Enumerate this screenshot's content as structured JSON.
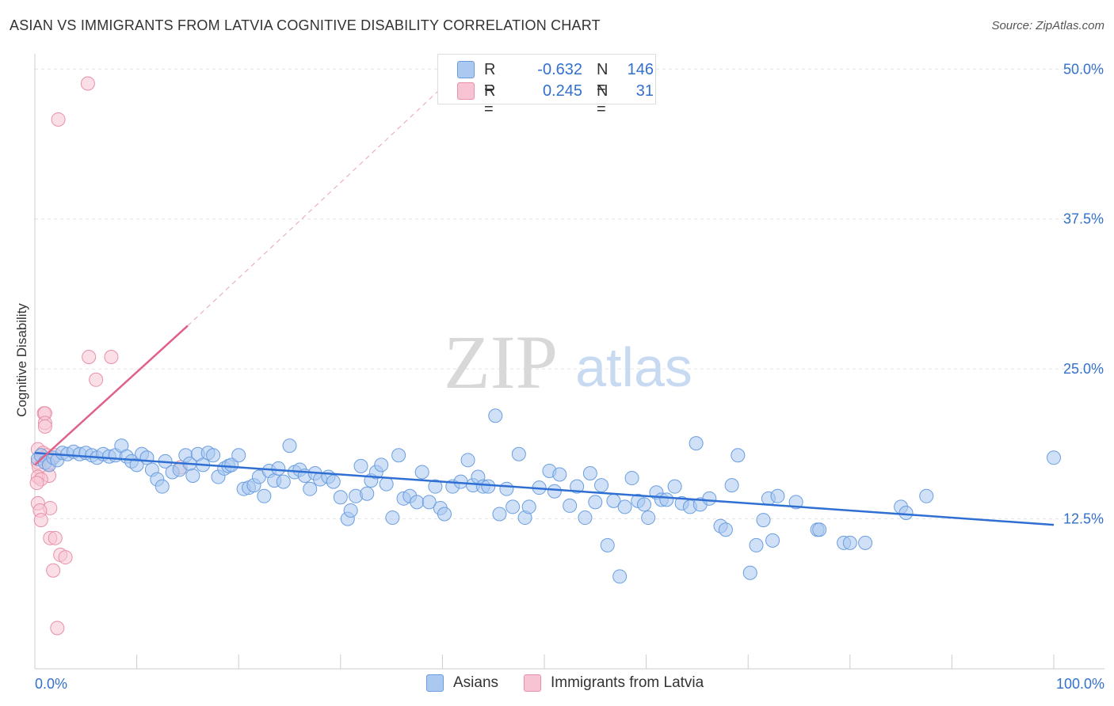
{
  "title": "ASIAN VS IMMIGRANTS FROM LATVIA COGNITIVE DISABILITY CORRELATION CHART",
  "source": "Source: ZipAtlas.com",
  "watermark": {
    "zip": "ZIP",
    "atlas": "atlas"
  },
  "legend": {
    "r_label": "R =",
    "n_label": "N =",
    "rows": [
      {
        "r": "-0.632",
        "n": "146",
        "color": "#aac8f0",
        "border": "#6a9ee0"
      },
      {
        "r": "0.245",
        "n": "31",
        "color": "#f8c4d4",
        "border": "#e890a8"
      }
    ]
  },
  "bottom_legend": [
    {
      "label": "Asians",
      "color": "#aac8f0",
      "border": "#6a9ee0"
    },
    {
      "label": "Immigrants from Latvia",
      "color": "#f8c4d4",
      "border": "#e890a8"
    }
  ],
  "chart_data": {
    "type": "scatter",
    "title": "ASIAN VS IMMIGRANTS FROM LATVIA COGNITIVE DISABILITY CORRELATION CHART",
    "xlabel": "",
    "ylabel": "Cognitive Disability",
    "xlim": [
      0,
      100
    ],
    "ylim": [
      0,
      52
    ],
    "x_tick_labels": [
      "0.0%",
      "100.0%"
    ],
    "y_ticks": [
      12.5,
      25.0,
      37.5,
      50.0
    ],
    "y_tick_labels": [
      "12.5%",
      "25.0%",
      "37.5%",
      "50.0%"
    ],
    "grid": "horizontal dashed",
    "series": [
      {
        "name": "Asians",
        "color": "#6a9ee0",
        "fill": "#aac8f0",
        "trend": {
          "x": [
            0,
            100
          ],
          "y": [
            18.0,
            12.0
          ]
        },
        "points": [
          [
            0.3,
            17.5
          ],
          [
            0.6,
            17.8
          ],
          [
            1.0,
            17.2
          ],
          [
            1.4,
            17.0
          ],
          [
            1.8,
            17.6
          ],
          [
            2.2,
            17.4
          ],
          [
            2.7,
            18.0
          ],
          [
            3.2,
            17.9
          ],
          [
            3.8,
            18.1
          ],
          [
            4.4,
            17.9
          ],
          [
            5.0,
            18.0
          ],
          [
            5.6,
            17.8
          ],
          [
            6.1,
            17.6
          ],
          [
            6.7,
            17.9
          ],
          [
            7.3,
            17.7
          ],
          [
            7.9,
            17.8
          ],
          [
            8.5,
            18.6
          ],
          [
            9.0,
            17.7
          ],
          [
            9.5,
            17.3
          ],
          [
            10.0,
            17.0
          ],
          [
            10.5,
            17.9
          ],
          [
            11.0,
            17.6
          ],
          [
            11.5,
            16.6
          ],
          [
            12.0,
            15.8
          ],
          [
            12.5,
            15.2
          ],
          [
            12.8,
            17.3
          ],
          [
            13.5,
            16.4
          ],
          [
            14.2,
            16.6
          ],
          [
            14.8,
            17.8
          ],
          [
            15.2,
            17.1
          ],
          [
            15.5,
            16.1
          ],
          [
            16.0,
            17.9
          ],
          [
            16.5,
            17.0
          ],
          [
            17.0,
            18.0
          ],
          [
            17.5,
            17.8
          ],
          [
            18.0,
            16.0
          ],
          [
            18.6,
            16.7
          ],
          [
            19.0,
            16.9
          ],
          [
            19.3,
            17.0
          ],
          [
            20.0,
            17.8
          ],
          [
            20.5,
            15.0
          ],
          [
            21.0,
            15.1
          ],
          [
            21.5,
            15.3
          ],
          [
            22.0,
            16.0
          ],
          [
            22.5,
            14.4
          ],
          [
            23.0,
            16.5
          ],
          [
            23.5,
            15.7
          ],
          [
            23.9,
            16.7
          ],
          [
            24.4,
            15.6
          ],
          [
            25.0,
            18.6
          ],
          [
            25.5,
            16.4
          ],
          [
            26.0,
            16.6
          ],
          [
            26.5,
            16.1
          ],
          [
            27.0,
            15.0
          ],
          [
            27.5,
            16.3
          ],
          [
            28.0,
            15.8
          ],
          [
            28.8,
            16.0
          ],
          [
            29.3,
            15.6
          ],
          [
            30.0,
            14.3
          ],
          [
            30.7,
            12.5
          ],
          [
            31.0,
            13.2
          ],
          [
            31.5,
            14.4
          ],
          [
            32.0,
            16.9
          ],
          [
            32.6,
            14.6
          ],
          [
            33.0,
            15.7
          ],
          [
            33.5,
            16.4
          ],
          [
            34.0,
            17.0
          ],
          [
            34.5,
            15.4
          ],
          [
            35.1,
            12.6
          ],
          [
            35.7,
            17.8
          ],
          [
            36.2,
            14.2
          ],
          [
            36.8,
            14.4
          ],
          [
            37.5,
            13.9
          ],
          [
            38.0,
            16.4
          ],
          [
            38.7,
            13.9
          ],
          [
            39.3,
            15.2
          ],
          [
            39.8,
            13.4
          ],
          [
            40.2,
            12.9
          ],
          [
            41.0,
            15.2
          ],
          [
            41.8,
            15.6
          ],
          [
            42.5,
            17.4
          ],
          [
            43.0,
            15.3
          ],
          [
            43.5,
            16.0
          ],
          [
            44.0,
            15.2
          ],
          [
            44.5,
            15.2
          ],
          [
            45.2,
            21.1
          ],
          [
            45.6,
            12.9
          ],
          [
            46.3,
            15.0
          ],
          [
            46.9,
            13.5
          ],
          [
            47.5,
            17.9
          ],
          [
            48.1,
            12.6
          ],
          [
            48.5,
            13.5
          ],
          [
            49.5,
            15.1
          ],
          [
            50.5,
            16.5
          ],
          [
            51.0,
            14.8
          ],
          [
            51.5,
            16.2
          ],
          [
            52.5,
            13.6
          ],
          [
            53.2,
            15.2
          ],
          [
            54.0,
            12.6
          ],
          [
            54.5,
            16.3
          ],
          [
            55.0,
            13.9
          ],
          [
            55.6,
            15.3
          ],
          [
            56.2,
            10.3
          ],
          [
            56.8,
            14.0
          ],
          [
            57.4,
            7.7
          ],
          [
            57.9,
            13.5
          ],
          [
            58.6,
            15.9
          ],
          [
            59.2,
            14.0
          ],
          [
            59.8,
            13.7
          ],
          [
            60.2,
            12.6
          ],
          [
            61.0,
            14.7
          ],
          [
            61.5,
            14.1
          ],
          [
            62.0,
            14.1
          ],
          [
            62.8,
            15.2
          ],
          [
            63.5,
            13.8
          ],
          [
            64.3,
            13.5
          ],
          [
            64.9,
            18.8
          ],
          [
            65.3,
            13.7
          ],
          [
            66.2,
            14.2
          ],
          [
            67.3,
            11.9
          ],
          [
            67.8,
            11.6
          ],
          [
            68.4,
            15.3
          ],
          [
            69.0,
            17.8
          ],
          [
            70.2,
            8.0
          ],
          [
            70.8,
            10.3
          ],
          [
            71.5,
            12.4
          ],
          [
            72.0,
            14.2
          ],
          [
            72.4,
            10.7
          ],
          [
            72.9,
            14.4
          ],
          [
            74.7,
            13.9
          ],
          [
            76.8,
            11.6
          ],
          [
            77.0,
            11.6
          ],
          [
            79.4,
            10.5
          ],
          [
            80.0,
            10.5
          ],
          [
            81.5,
            10.5
          ],
          [
            85.0,
            13.5
          ],
          [
            85.5,
            13.0
          ],
          [
            87.5,
            14.4
          ],
          [
            100.0,
            17.6
          ]
        ]
      },
      {
        "name": "Immigrants from Latvia",
        "color": "#e890a8",
        "fill": "#f8c4d4",
        "trend": {
          "x": [
            0,
            15
          ],
          "y": [
            17.0,
            28.6
          ]
        },
        "trend_extension": {
          "x": [
            15,
            40
          ],
          "y": [
            28.6,
            48.5
          ]
        },
        "points": [
          [
            5.2,
            48.8
          ],
          [
            2.3,
            45.8
          ],
          [
            5.3,
            26.0
          ],
          [
            7.5,
            26.0
          ],
          [
            6.0,
            24.1
          ],
          [
            0.9,
            21.3
          ],
          [
            1.0,
            21.3
          ],
          [
            1.0,
            20.5
          ],
          [
            1.0,
            20.2
          ],
          [
            0.3,
            18.3
          ],
          [
            0.8,
            18.0
          ],
          [
            1.2,
            17.8
          ],
          [
            2.0,
            17.8
          ],
          [
            0.3,
            17.2
          ],
          [
            1.3,
            17.1
          ],
          [
            0.4,
            16.8
          ],
          [
            0.3,
            16.0
          ],
          [
            1.4,
            16.1
          ],
          [
            0.6,
            15.8
          ],
          [
            0.2,
            15.5
          ],
          [
            0.3,
            13.8
          ],
          [
            1.5,
            13.4
          ],
          [
            0.5,
            13.2
          ],
          [
            0.6,
            12.4
          ],
          [
            1.5,
            10.9
          ],
          [
            2.0,
            10.9
          ],
          [
            2.5,
            9.5
          ],
          [
            3.0,
            9.3
          ],
          [
            1.8,
            8.2
          ],
          [
            2.2,
            3.4
          ],
          [
            14.3,
            16.8
          ]
        ]
      }
    ]
  }
}
